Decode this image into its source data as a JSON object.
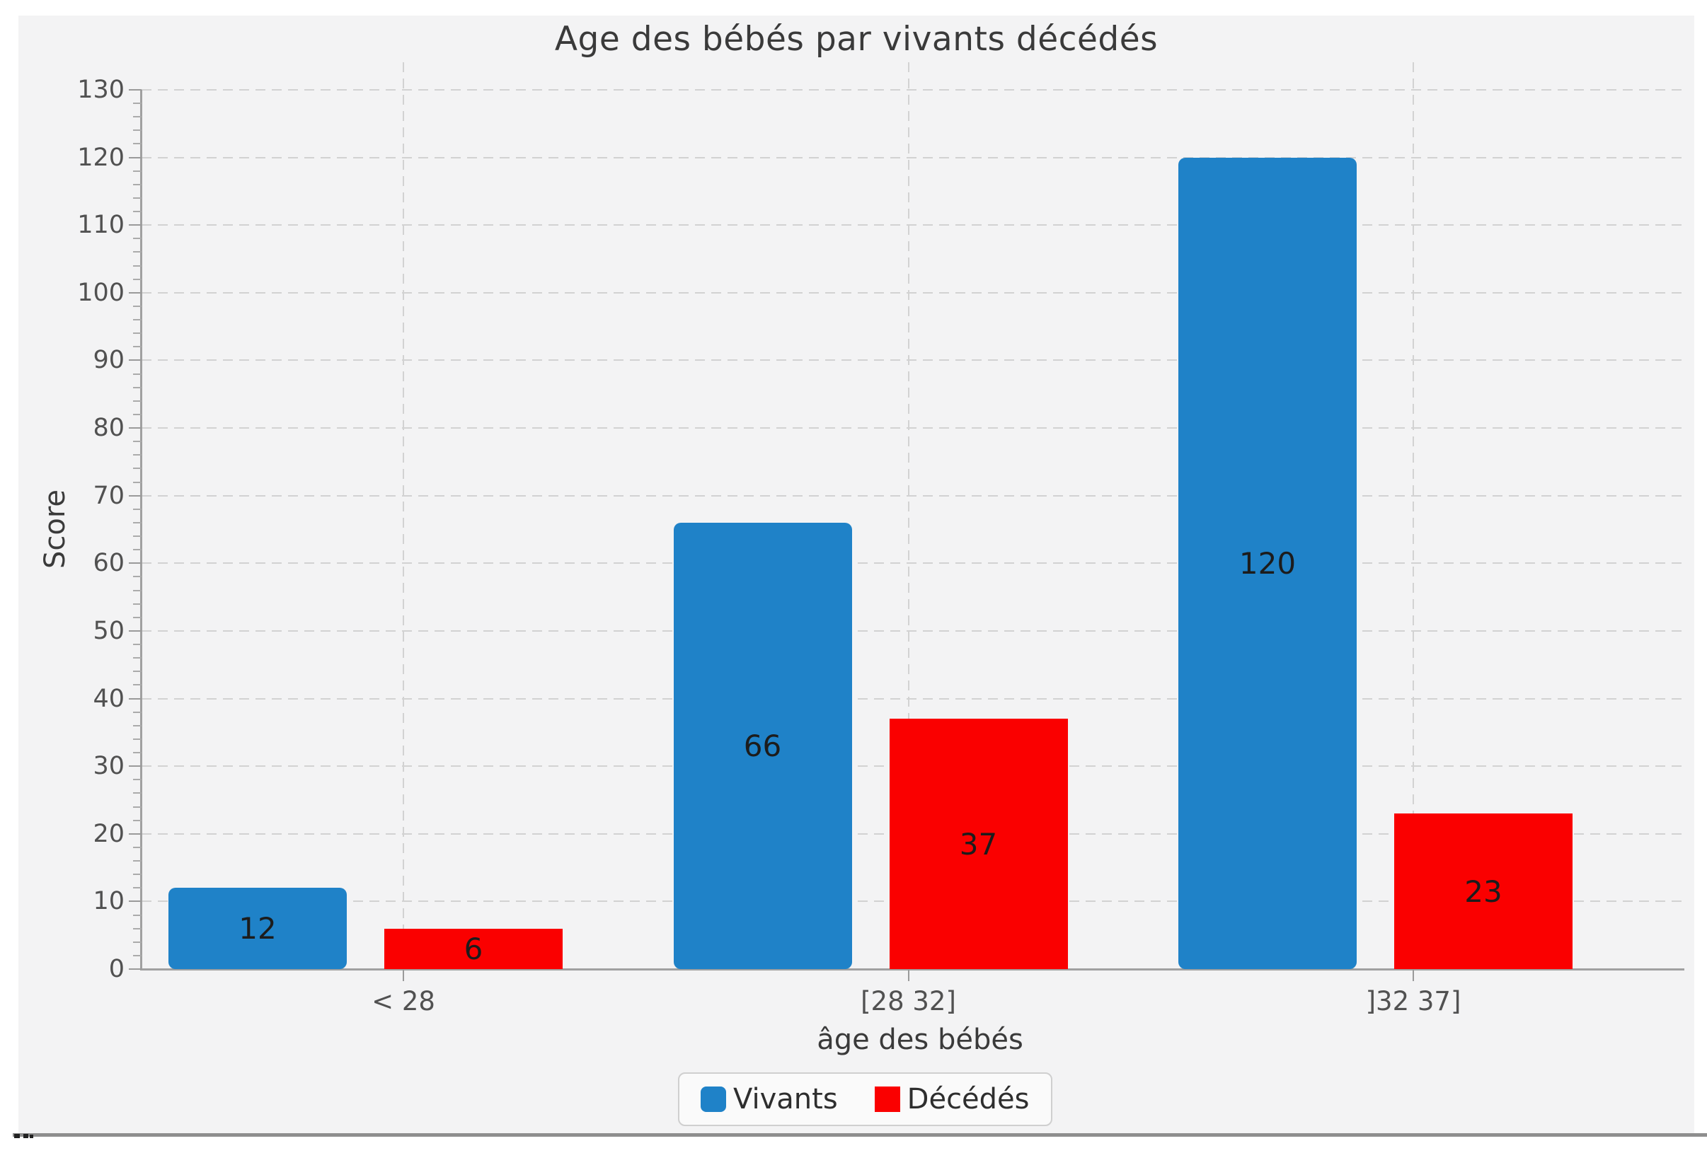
{
  "chart_data": {
    "type": "bar",
    "title": "Age des bébés par vivants décédés",
    "xlabel": "âge des bébés",
    "ylabel": "Score",
    "categories": [
      "< 28",
      "[28 32]",
      "]32 37]"
    ],
    "series": [
      {
        "name": "Vivants",
        "color": "#1f82c8",
        "values": [
          12,
          66,
          120
        ]
      },
      {
        "name": "Décédés",
        "color": "#fa0000",
        "values": [
          6,
          37,
          23
        ]
      }
    ],
    "ylim": [
      0,
      130
    ],
    "ytick_step": 10,
    "y_minor_step": 2,
    "yticks": [
      0,
      10,
      20,
      30,
      40,
      50,
      60,
      70,
      80,
      90,
      100,
      110,
      120,
      130
    ],
    "grid": "dashed",
    "legend_position": "bottom",
    "bar_value_labels": [
      12,
      66,
      120,
      6,
      37,
      23
    ]
  },
  "legend": {
    "items": [
      {
        "label": "Vivants",
        "color": "#1f82c8"
      },
      {
        "label": "Décédés",
        "color": "#fa0000"
      }
    ]
  }
}
